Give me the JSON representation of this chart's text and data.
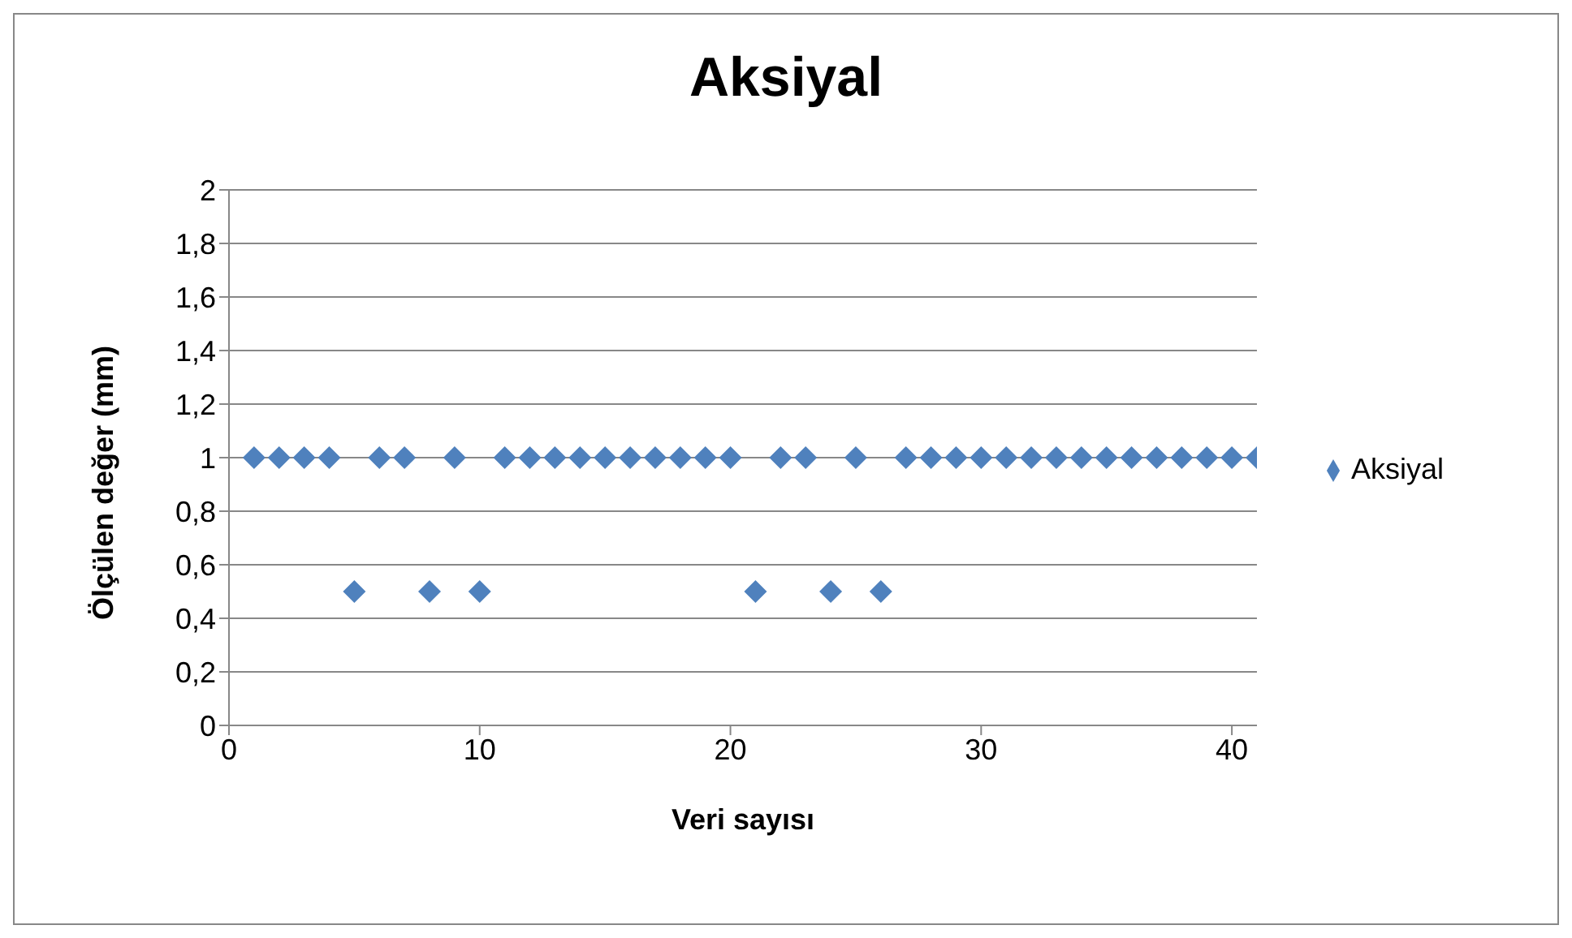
{
  "chart_data": {
    "type": "scatter",
    "title": "Aksiyal",
    "xlabel": "Veri sayısı",
    "ylabel": "Ölçülen değer (mm)",
    "x": [
      1,
      2,
      3,
      4,
      5,
      6,
      7,
      8,
      9,
      10,
      11,
      12,
      13,
      14,
      15,
      16,
      17,
      18,
      19,
      20,
      21,
      22,
      23,
      24,
      25,
      26,
      27,
      28,
      29,
      30,
      31,
      32,
      33,
      34,
      35,
      36,
      37,
      38,
      39,
      40,
      41
    ],
    "series": [
      {
        "name": "Aksiyal",
        "color": "#4f81bd",
        "values": [
          1,
          1,
          1,
          1,
          0.5,
          1,
          1,
          0.5,
          1,
          0.5,
          1,
          1,
          1,
          1,
          1,
          1,
          1,
          1,
          1,
          1,
          0.5,
          1,
          1,
          0.5,
          1,
          0.5,
          1,
          1,
          1,
          1,
          1,
          1,
          1,
          1,
          1,
          1,
          1,
          1,
          1,
          1,
          1
        ]
      }
    ],
    "xlim": [
      0,
      41
    ],
    "xticks": [
      0,
      10,
      20,
      30,
      40
    ],
    "ylim": [
      0,
      2
    ],
    "yticks": [
      0,
      {
        "value": 0.2,
        "label": "0,2"
      },
      {
        "value": 0.4,
        "label": "0,4"
      },
      {
        "value": 0.6,
        "label": "0,6"
      },
      {
        "value": 0.8,
        "label": "0,8"
      },
      1,
      {
        "value": 1.2,
        "label": "1,2"
      },
      {
        "value": 1.4,
        "label": "1,4"
      },
      {
        "value": 1.6,
        "label": "1,6"
      },
      {
        "value": 1.8,
        "label": "1,8"
      },
      2
    ],
    "grid": "y",
    "legend": "right",
    "marker": "diamond"
  }
}
